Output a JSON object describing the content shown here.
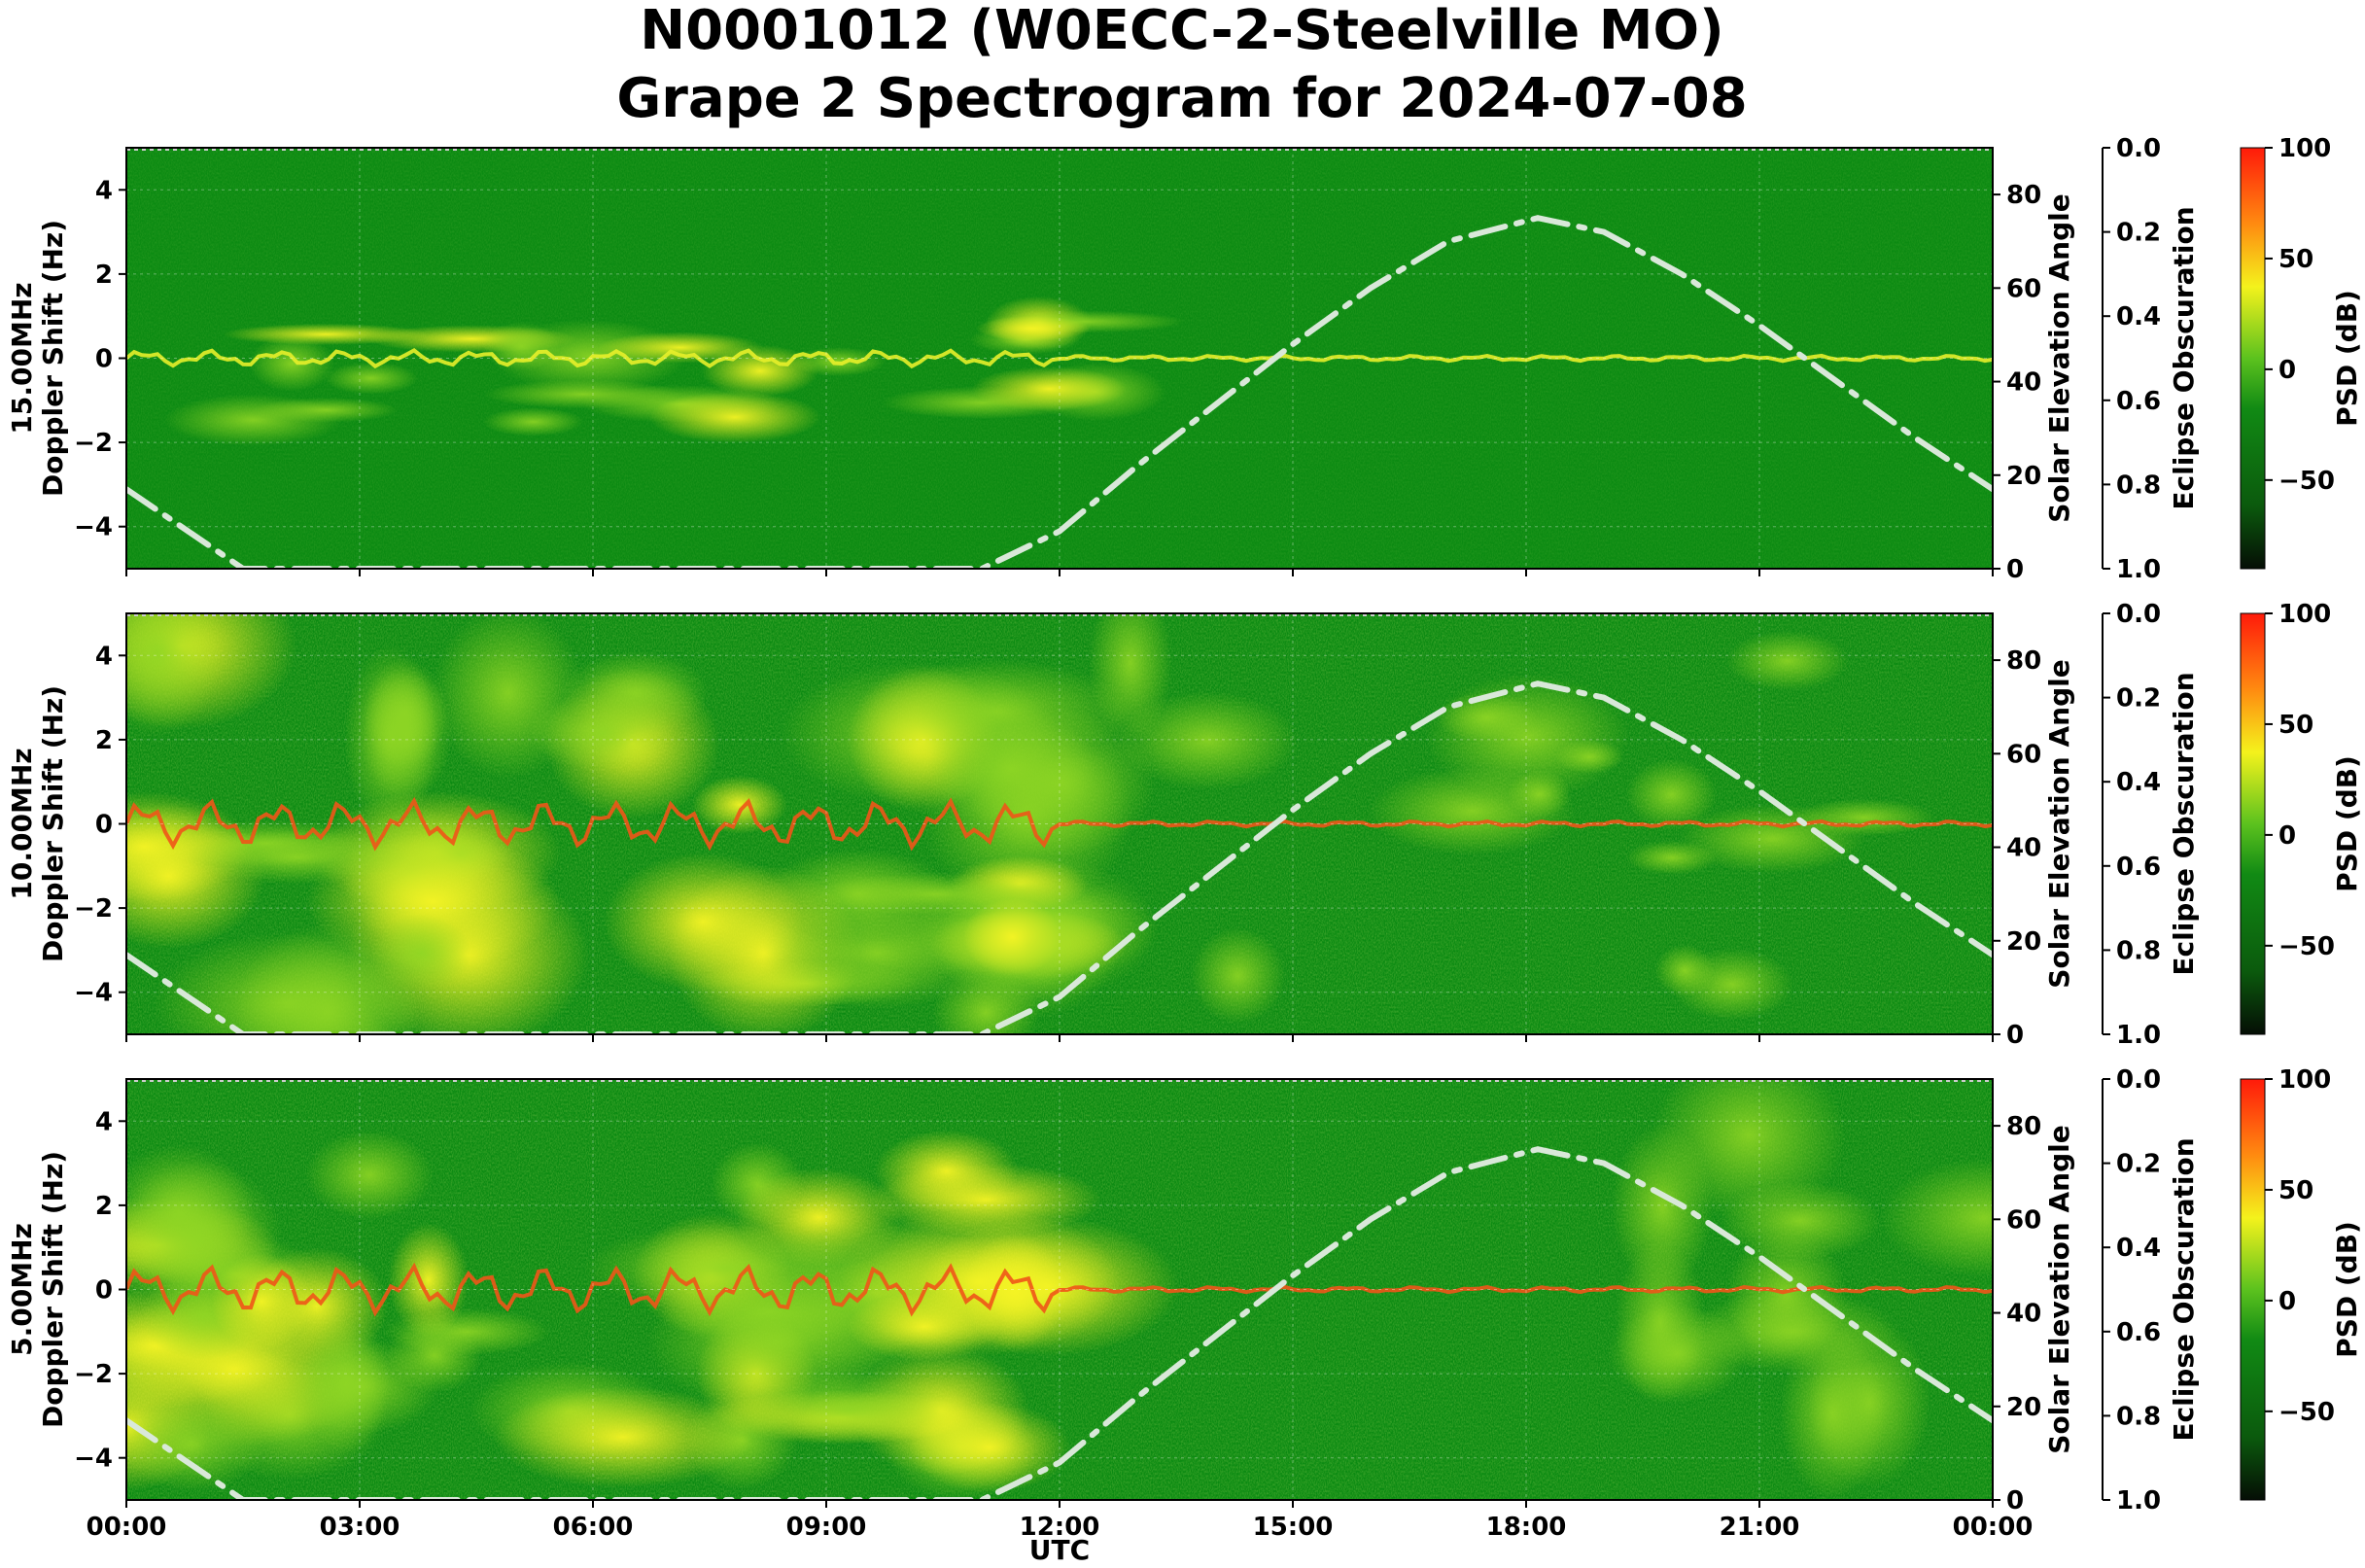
{
  "chart_data": {
    "type": "heatmap",
    "title": "N0001012 (W0ECC-2-Steelville MO)",
    "subtitle": "Grape 2 Spectrogram for 2024-07-08",
    "xlabel": "UTC",
    "x_ticks": [
      "00:00",
      "03:00",
      "06:00",
      "09:00",
      "12:00",
      "15:00",
      "18:00",
      "21:00",
      "00:00"
    ],
    "x_range_hours": [
      0,
      24
    ],
    "grid": true,
    "colors": {
      "background": "#0b8a12",
      "mid": "#7fcf22",
      "high": "#f2f21e",
      "peak": "#f04a12",
      "overlay": "#d9e8d9"
    },
    "panels": [
      {
        "frequency_label": "15.00MHz",
        "ylabel": "Doppler Shift (Hz)",
        "y_ticks": [
          "4",
          "2",
          "0",
          "−2",
          "−4"
        ],
        "ylim": [
          -5,
          5
        ],
        "right_ylabel": "Solar Elevation Angle",
        "right_ticks": [
          "80",
          "60",
          "40",
          "20",
          "0"
        ],
        "right_ylim": [
          0,
          90
        ],
        "eclipse_label": "Eclipse Obscuration",
        "eclipse_ticks": [
          "0.0",
          "0.2",
          "0.4",
          "0.6",
          "0.8",
          "1.0"
        ],
        "colorbar_label": "PSD (dB)",
        "colorbar_ticks": [
          "100",
          "50",
          "0",
          "−50"
        ],
        "activity": "low"
      },
      {
        "frequency_label": "10.00MHz",
        "ylabel": "Doppler Shift (Hz)",
        "y_ticks": [
          "4",
          "2",
          "0",
          "−2",
          "−4"
        ],
        "ylim": [
          -5,
          5
        ],
        "right_ylabel": "Solar Elevation Angle",
        "right_ticks": [
          "80",
          "60",
          "40",
          "20",
          "0"
        ],
        "right_ylim": [
          0,
          90
        ],
        "eclipse_label": "Eclipse Obscuration",
        "eclipse_ticks": [
          "0.0",
          "0.2",
          "0.4",
          "0.6",
          "0.8",
          "1.0"
        ],
        "colorbar_label": "PSD (dB)",
        "colorbar_ticks": [
          "100",
          "50",
          "0",
          "−50"
        ],
        "activity": "high"
      },
      {
        "frequency_label": "5.00MHz",
        "ylabel": "Doppler Shift (Hz)",
        "y_ticks": [
          "4",
          "2",
          "0",
          "−2",
          "−4"
        ],
        "ylim": [
          -5,
          5
        ],
        "right_ylabel": "Solar Elevation Angle",
        "right_ticks": [
          "80",
          "60",
          "40",
          "20",
          "0"
        ],
        "right_ylim": [
          0,
          90
        ],
        "eclipse_label": "Eclipse Obscuration",
        "eclipse_ticks": [
          "0.0",
          "0.2",
          "0.4",
          "0.6",
          "0.8",
          "1.0"
        ],
        "colorbar_label": "PSD (dB)",
        "colorbar_ticks": [
          "100",
          "50",
          "0",
          "−50"
        ],
        "activity": "medium"
      }
    ],
    "solar_elevation": {
      "hours": [
        0,
        1.5,
        11,
        12,
        13,
        14,
        15,
        16,
        17,
        18.15,
        19,
        20,
        21,
        22,
        23,
        24
      ],
      "degrees": [
        17,
        0,
        0,
        8,
        22,
        35,
        48,
        60,
        70,
        75,
        72,
        63,
        52,
        40,
        28,
        17
      ]
    }
  }
}
